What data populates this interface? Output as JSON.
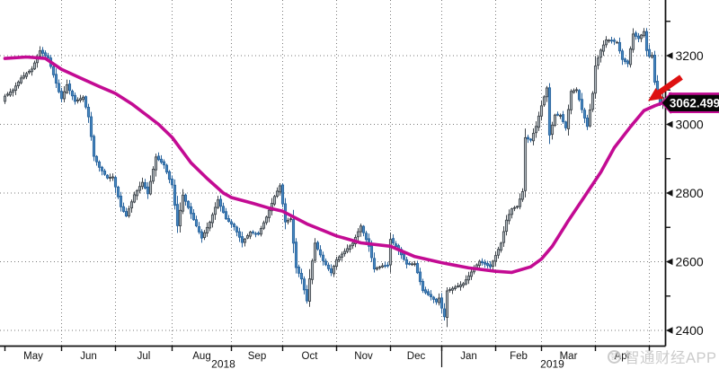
{
  "watermark": {
    "text": "智通财经APP",
    "logo": "zhitong-circle-logo"
  },
  "chart_data": {
    "type": "candlestick",
    "title": "",
    "legend": "none",
    "grid": "dotted",
    "x_axis": {
      "tick_labels": [
        "May",
        "Jun",
        "Jul",
        "Aug",
        "Sep",
        "Oct",
        "Nov",
        "Dec",
        "Jan",
        "Feb",
        "Mar",
        "Apr"
      ],
      "year_labels": [
        {
          "text": "2018",
          "center_day": 81
        },
        {
          "text": "2019",
          "center_day": 203
        }
      ],
      "year_separator_day": 162,
      "month_boundary_days": [
        0,
        21,
        41,
        62,
        84,
        103,
        123,
        143,
        162,
        182,
        199,
        219,
        239
      ],
      "total_days": 245
    },
    "y_axis": {
      "side": "right",
      "major_ticks": [
        2400,
        2600,
        2800,
        3000,
        3200
      ],
      "minor_ticks": [
        2500,
        2700,
        2900,
        3100,
        3300
      ],
      "price_range_shown": [
        2345,
        3364
      ]
    },
    "series": [
      {
        "name": "index-price",
        "type": "ohlc",
        "close_keypoints": [
          [
            0,
            3082
          ],
          [
            3,
            3100
          ],
          [
            6,
            3135
          ],
          [
            10,
            3161
          ],
          [
            13,
            3214
          ],
          [
            16,
            3193
          ],
          [
            19,
            3120
          ],
          [
            20,
            3095
          ],
          [
            21,
            3075
          ],
          [
            23,
            3115
          ],
          [
            26,
            3067
          ],
          [
            29,
            3079
          ],
          [
            31,
            3022
          ],
          [
            33,
            2907
          ],
          [
            35,
            2875
          ],
          [
            38,
            2844
          ],
          [
            40,
            2847
          ],
          [
            43,
            2760
          ],
          [
            45,
            2733
          ],
          [
            48,
            2795
          ],
          [
            51,
            2831
          ],
          [
            53,
            2798
          ],
          [
            56,
            2905
          ],
          [
            59,
            2882
          ],
          [
            61,
            2840
          ],
          [
            62,
            2824
          ],
          [
            64,
            2705
          ],
          [
            66,
            2794
          ],
          [
            69,
            2740
          ],
          [
            73,
            2669
          ],
          [
            76,
            2715
          ],
          [
            79,
            2780
          ],
          [
            82,
            2725
          ],
          [
            85,
            2702
          ],
          [
            88,
            2656
          ],
          [
            91,
            2686
          ],
          [
            94,
            2680
          ],
          [
            97,
            2730
          ],
          [
            100,
            2790
          ],
          [
            102,
            2821
          ],
          [
            104,
            2716
          ],
          [
            106,
            2725
          ],
          [
            108,
            2583
          ],
          [
            110,
            2550
          ],
          [
            112,
            2486
          ],
          [
            113,
            2550
          ],
          [
            115,
            2654
          ],
          [
            118,
            2603
          ],
          [
            121,
            2568
          ],
          [
            123,
            2606
          ],
          [
            126,
            2630
          ],
          [
            129,
            2654
          ],
          [
            132,
            2704
          ],
          [
            135,
            2645
          ],
          [
            137,
            2579
          ],
          [
            140,
            2588
          ],
          [
            142,
            2588
          ],
          [
            143,
            2665
          ],
          [
            146,
            2634
          ],
          [
            149,
            2593
          ],
          [
            152,
            2594
          ],
          [
            155,
            2516
          ],
          [
            158,
            2498
          ],
          [
            160,
            2483
          ],
          [
            161,
            2494
          ],
          [
            162,
            2465
          ],
          [
            163,
            2440
          ],
          [
            164,
            2515
          ],
          [
            167,
            2526
          ],
          [
            170,
            2536
          ],
          [
            173,
            2570
          ],
          [
            176,
            2601
          ],
          [
            180,
            2585
          ],
          [
            182,
            2618
          ],
          [
            184,
            2654
          ],
          [
            186,
            2721
          ],
          [
            188,
            2754
          ],
          [
            190,
            2761
          ],
          [
            192,
            2804
          ],
          [
            193,
            2961
          ],
          [
            195,
            2954
          ],
          [
            197,
            2994
          ],
          [
            199,
            3054
          ],
          [
            201,
            3106
          ],
          [
            202,
            2969
          ],
          [
            204,
            3027
          ],
          [
            206,
            3026
          ],
          [
            208,
            2990
          ],
          [
            210,
            3096
          ],
          [
            212,
            3101
          ],
          [
            214,
            3043
          ],
          [
            216,
            2994
          ],
          [
            218,
            3090
          ],
          [
            219,
            3170
          ],
          [
            221,
            3216
          ],
          [
            223,
            3246
          ],
          [
            225,
            3244
          ],
          [
            227,
            3239
          ],
          [
            229,
            3189
          ],
          [
            231,
            3177
          ],
          [
            233,
            3263
          ],
          [
            235,
            3250
          ],
          [
            237,
            3270
          ],
          [
            238,
            3215
          ],
          [
            239,
            3198
          ],
          [
            240,
            3201
          ],
          [
            241,
            3123
          ],
          [
            242,
            3086
          ],
          [
            243,
            3062
          ],
          [
            244,
            3078
          ]
        ]
      },
      {
        "name": "moving-average",
        "type": "line",
        "last_value": 3062.499,
        "keypoints": [
          [
            0,
            3192
          ],
          [
            8,
            3196
          ],
          [
            15,
            3192
          ],
          [
            21,
            3160
          ],
          [
            28,
            3135
          ],
          [
            35,
            3110
          ],
          [
            41,
            3090
          ],
          [
            47,
            3060
          ],
          [
            52,
            3030
          ],
          [
            57,
            3000
          ],
          [
            62,
            2962
          ],
          [
            69,
            2888
          ],
          [
            75,
            2842
          ],
          [
            81,
            2800
          ],
          [
            84,
            2787
          ],
          [
            92,
            2770
          ],
          [
            98,
            2756
          ],
          [
            103,
            2747
          ],
          [
            112,
            2710
          ],
          [
            123,
            2675
          ],
          [
            132,
            2655
          ],
          [
            143,
            2645
          ],
          [
            152,
            2615
          ],
          [
            162,
            2597
          ],
          [
            172,
            2582
          ],
          [
            182,
            2572
          ],
          [
            188,
            2569
          ],
          [
            195,
            2585
          ],
          [
            199,
            2608
          ],
          [
            203,
            2645
          ],
          [
            209,
            2720
          ],
          [
            215,
            2790
          ],
          [
            221,
            2861
          ],
          [
            226,
            2932
          ],
          [
            232,
            2993
          ],
          [
            237,
            3040
          ],
          [
            241,
            3054
          ],
          [
            244,
            3062.5
          ]
        ]
      }
    ],
    "annotations": {
      "price_flag": {
        "text": "3062.499"
      },
      "arrow": {
        "points_at": "price crossing moving average at last bar"
      }
    },
    "colors": {
      "up_fill": "#b3bcc2",
      "up_stroke": "#41474d",
      "down_fill": "#4587c0",
      "down_stroke": "#2d669e",
      "ma_line": "#c30b93",
      "grid": "#7a7a7a",
      "axis": "#111111",
      "arrow": "#de1111",
      "flag_bg": "#070707",
      "flag_text": "#ffffff",
      "flag_border": "#c30b93"
    }
  }
}
